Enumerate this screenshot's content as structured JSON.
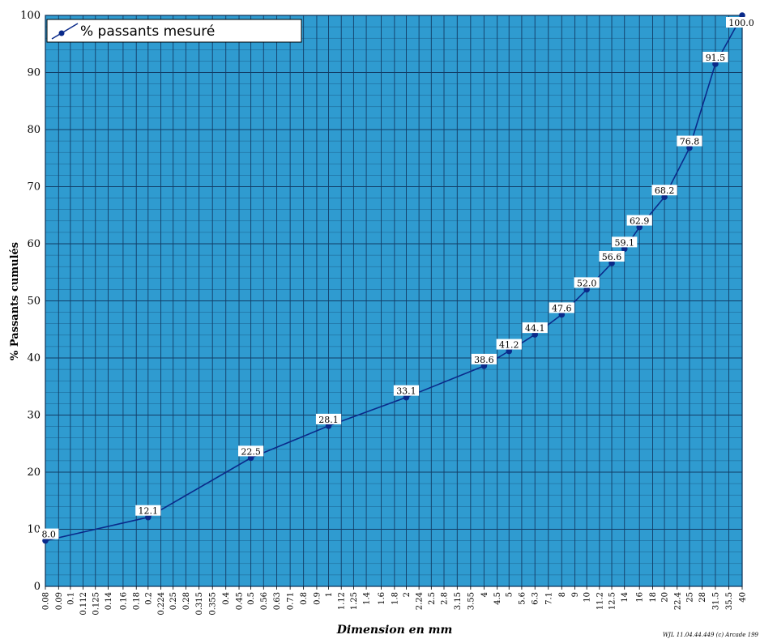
{
  "chart_data": {
    "type": "line",
    "xscale": "log",
    "xlabel": "Dimension en mm",
    "ylabel": "% Passants cumulés",
    "ylim": [
      0,
      100
    ],
    "yticks": [
      "0",
      "10",
      "20",
      "30",
      "40",
      "50",
      "60",
      "70",
      "80",
      "90",
      "100"
    ],
    "xticks": [
      "0.08",
      "0.09",
      "0.1",
      "0.112",
      "0.125",
      "0.14",
      "0.16",
      "0.18",
      "0.2",
      "0.224",
      "0.25",
      "0.28",
      "0.315",
      "0.355",
      "0.4",
      "0.45",
      "0.5",
      "0.56",
      "0.63",
      "0.71",
      "0.8",
      "0.9",
      "1",
      "1.12",
      "1.25",
      "1.4",
      "1.6",
      "1.8",
      "2",
      "2.24",
      "2.5",
      "2.8",
      "3.15",
      "3.55",
      "4",
      "4.5",
      "5",
      "5.6",
      "6.3",
      "7.1",
      "8",
      "9",
      "10",
      "11.2",
      "12.5",
      "14",
      "16",
      "18",
      "20",
      "22.4",
      "25",
      "28",
      "31.5",
      "35.5",
      "40"
    ],
    "grid": true,
    "legend": {
      "entry": "% passants mesuré",
      "placement": "top-left"
    },
    "series": [
      {
        "name": "% passants mesuré",
        "color": "#0a2a8a",
        "points": [
          {
            "x": 0.08,
            "y": 8.0,
            "label": "8.0"
          },
          {
            "x": 0.2,
            "y": 12.1,
            "label": "12.1"
          },
          {
            "x": 0.5,
            "y": 22.5,
            "label": "22.5"
          },
          {
            "x": 1,
            "y": 28.1,
            "label": "28.1"
          },
          {
            "x": 2,
            "y": 33.1,
            "label": "33.1"
          },
          {
            "x": 4,
            "y": 38.6,
            "label": "38.6"
          },
          {
            "x": 5,
            "y": 41.2,
            "label": "41.2"
          },
          {
            "x": 6.3,
            "y": 44.1,
            "label": "44.1"
          },
          {
            "x": 8,
            "y": 47.6,
            "label": "47.6"
          },
          {
            "x": 10,
            "y": 52.0,
            "label": "52.0"
          },
          {
            "x": 12.5,
            "y": 56.6,
            "label": "56.6"
          },
          {
            "x": 14,
            "y": 59.1,
            "label": "59.1"
          },
          {
            "x": 16,
            "y": 62.9,
            "label": "62.9"
          },
          {
            "x": 20,
            "y": 68.2,
            "label": "68.2"
          },
          {
            "x": 25,
            "y": 76.8,
            "label": "76.8"
          },
          {
            "x": 31.5,
            "y": 91.5,
            "label": "91.5"
          },
          {
            "x": 40,
            "y": 100.0,
            "label": "100.0"
          }
        ]
      }
    ],
    "footer": "WJL 11.04.44.449 (c) Arcade 199"
  },
  "colors": {
    "plot_bg": "#2f9bd0",
    "grid_major": "#123c66",
    "grid_minor": "#1b5f8c",
    "line": "#0a2a8a",
    "label_bg": "#ffffff"
  }
}
